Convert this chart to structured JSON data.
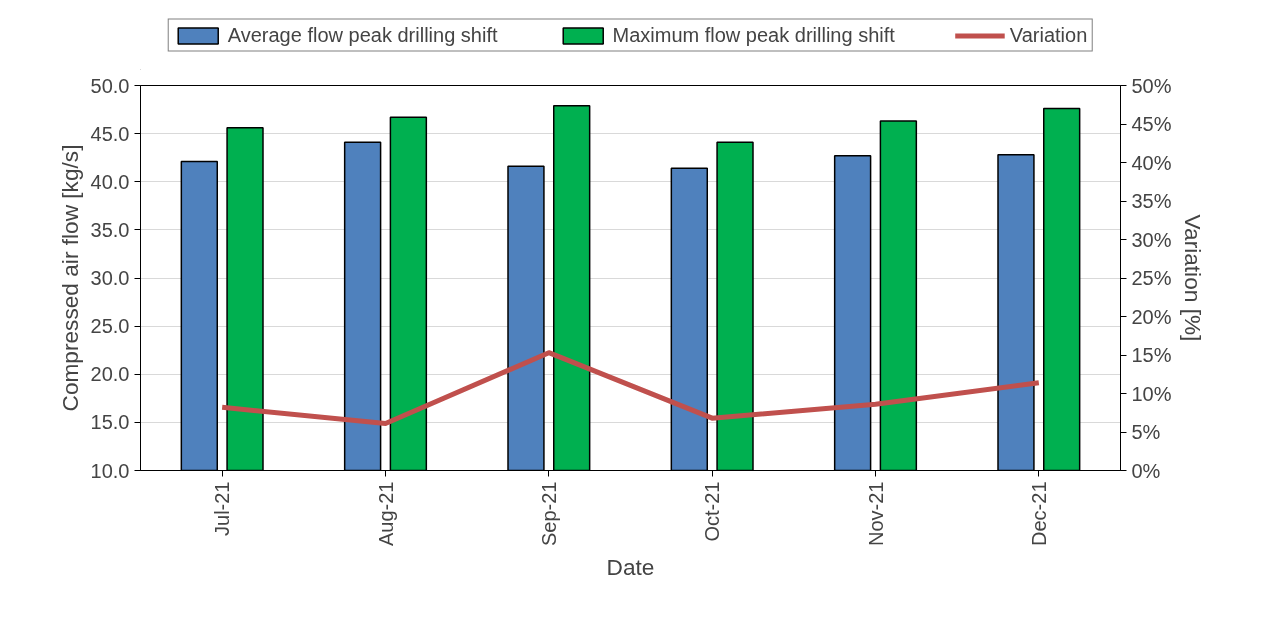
{
  "chart_data": {
    "type": "bar",
    "xlabel": "Date",
    "ylabel": "Compressed air flow [kg/s]",
    "y2label": "Variation [%]",
    "categories": [
      "Jul-21",
      "Aug-21",
      "Sep-21",
      "Oct-21",
      "Nov-21",
      "Dec-21"
    ],
    "series": [
      {
        "name": "Average flow peak drilling shift",
        "color": "#4f81bd",
        "values": [
          42.1,
          44.1,
          41.6,
          41.4,
          42.7,
          42.8
        ]
      },
      {
        "name": "Maximum flow peak drilling shift",
        "color": "#00b050",
        "values": [
          45.6,
          46.7,
          47.9,
          44.1,
          46.3,
          47.6
        ]
      },
      {
        "name": "Variation",
        "type": "line",
        "axis": "y2",
        "color": "#c0504d",
        "values": [
          8.2,
          6.1,
          15.3,
          6.8,
          8.6,
          11.4
        ]
      }
    ],
    "ylim": [
      10,
      50
    ],
    "yticks": [
      {
        "value": 10,
        "label": "10.0"
      },
      {
        "value": 15,
        "label": "15.0"
      },
      {
        "value": 20,
        "label": "20.0"
      },
      {
        "value": 25,
        "label": "25.0"
      },
      {
        "value": 30,
        "label": "30.0"
      },
      {
        "value": 35,
        "label": "35.0"
      },
      {
        "value": 40,
        "label": "40.0"
      },
      {
        "value": 45,
        "label": "45.0"
      },
      {
        "value": 50,
        "label": "50.0"
      }
    ],
    "y2lim": [
      0,
      50
    ],
    "y2ticks": [
      {
        "value": 0,
        "label": "0%"
      },
      {
        "value": 5,
        "label": "5%"
      },
      {
        "value": 10,
        "label": "10%"
      },
      {
        "value": 15,
        "label": "15%"
      },
      {
        "value": 20,
        "label": "20%"
      },
      {
        "value": 25,
        "label": "25%"
      },
      {
        "value": 30,
        "label": "30%"
      },
      {
        "value": 35,
        "label": "35%"
      },
      {
        "value": 40,
        "label": "40%"
      },
      {
        "value": 45,
        "label": "45%"
      },
      {
        "value": 50,
        "label": "50%"
      }
    ],
    "grid": "y",
    "legend": "top"
  }
}
